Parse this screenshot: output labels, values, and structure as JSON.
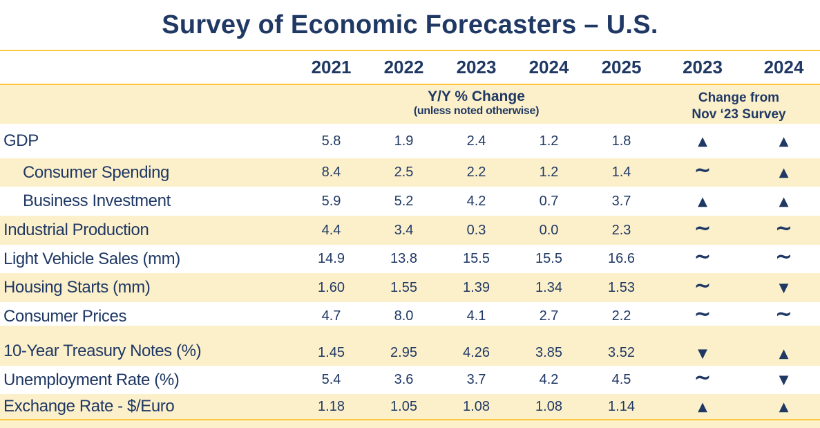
{
  "title": "Survey of Economic Forecasters – U.S.",
  "colors": {
    "navy_text": "#1F3864",
    "cream_band": "#FCF0CA",
    "gold_rule": "#FFC83D",
    "background": "#FFFFFF"
  },
  "columns": {
    "years": [
      "2021",
      "2022",
      "2023",
      "2024",
      "2025"
    ],
    "change_years": [
      "2023",
      "2024"
    ]
  },
  "subheader": {
    "yy_title": "Y/Y % Change",
    "yy_note": "(unless noted otherwise)",
    "change_line1": "Change from",
    "change_line2": "Nov ‘23 Survey"
  },
  "symbols_legend": {
    "up": "▲",
    "down": "▼",
    "unchanged": "~"
  },
  "table": {
    "rows": [
      {
        "label": "GDP",
        "indent": false,
        "values": [
          "5.8",
          "1.9",
          "2.4",
          "1.2",
          "1.8"
        ],
        "changes": [
          "▲",
          "▲"
        ]
      },
      {
        "label": "Consumer Spending",
        "indent": true,
        "values": [
          "8.4",
          "2.5",
          "2.2",
          "1.2",
          "1.4"
        ],
        "changes": [
          "~",
          "▲"
        ]
      },
      {
        "label": "Business Investment",
        "indent": true,
        "values": [
          "5.9",
          "5.2",
          "4.2",
          "0.7",
          "3.7"
        ],
        "changes": [
          "▲",
          "▲"
        ]
      },
      {
        "label": "Industrial Production",
        "indent": false,
        "values": [
          "4.4",
          "3.4",
          "0.3",
          "0.0",
          "2.3"
        ],
        "changes": [
          "~",
          "~"
        ]
      },
      {
        "label": "Light Vehicle Sales (mm)",
        "indent": false,
        "values": [
          "14.9",
          "13.8",
          "15.5",
          "15.5",
          "16.6"
        ],
        "changes": [
          "~",
          "~"
        ]
      },
      {
        "label": "Housing Starts (mm)",
        "indent": false,
        "values": [
          "1.60",
          "1.55",
          "1.39",
          "1.34",
          "1.53"
        ],
        "changes": [
          "~",
          "▼"
        ]
      },
      {
        "label": "Consumer Prices",
        "indent": false,
        "values": [
          "4.7",
          "8.0",
          "4.1",
          "2.7",
          "2.2"
        ],
        "changes": [
          "~",
          "~"
        ]
      },
      {
        "label": "10-Year Treasury Notes (%)",
        "indent": false,
        "values": [
          "1.45",
          "2.95",
          "4.26",
          "3.85",
          "3.52"
        ],
        "changes": [
          "▼",
          "▲"
        ]
      },
      {
        "label": "Unemployment Rate (%)",
        "indent": false,
        "values": [
          "5.4",
          "3.6",
          "3.7",
          "4.2",
          "4.5"
        ],
        "changes": [
          "~",
          "▼"
        ]
      },
      {
        "label": "Exchange Rate - $/Euro",
        "indent": false,
        "values": [
          "1.18",
          "1.05",
          "1.08",
          "1.08",
          "1.14"
        ],
        "changes": [
          "▲",
          "▲"
        ]
      }
    ]
  }
}
